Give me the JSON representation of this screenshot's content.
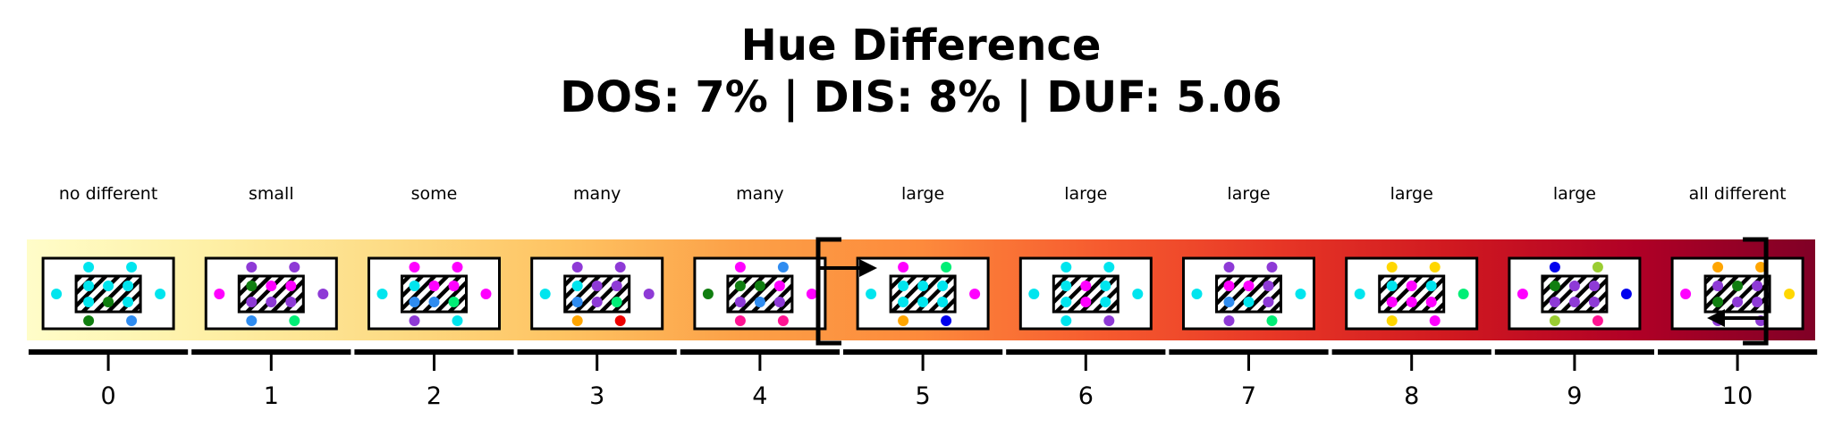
{
  "title": {
    "line1": "Hue Difference",
    "line2": "DOS: 7% | DIS: 8% | DUF: 5.06"
  },
  "colors": {
    "scale_gradient": [
      "#fffdc9",
      "#fef0a6",
      "#fddc86",
      "#fec362",
      "#fca047",
      "#fd8a3c",
      "#f65b2f",
      "#e73626",
      "#cf1820",
      "#b00026",
      "#800026"
    ],
    "hue_dots": [
      "#00e5ee",
      "#ff00ff",
      "#8e3ad6",
      "#2f8cf0",
      "#00ee76",
      "#107e10",
      "#ff1493",
      "#ffa500",
      "#ee0000",
      "#0000ee",
      "#ffd700",
      "#9acd32"
    ],
    "frame": "#000000"
  },
  "scale": {
    "levels": [
      {
        "value": "0",
        "label": "no different"
      },
      {
        "value": "1",
        "label": "small"
      },
      {
        "value": "2",
        "label": "some"
      },
      {
        "value": "3",
        "label": "many"
      },
      {
        "value": "4",
        "label": "many"
      },
      {
        "value": "5",
        "label": "large"
      },
      {
        "value": "6",
        "label": "large"
      },
      {
        "value": "7",
        "label": "large"
      },
      {
        "value": "8",
        "label": "large"
      },
      {
        "value": "9",
        "label": "large"
      },
      {
        "value": "10",
        "label": "all different"
      }
    ],
    "bracket_range": {
      "start": 5,
      "end": 10
    },
    "bracket_arrows": [
      {
        "from": "left",
        "direction": "right"
      },
      {
        "from": "right",
        "direction": "left"
      }
    ]
  }
}
